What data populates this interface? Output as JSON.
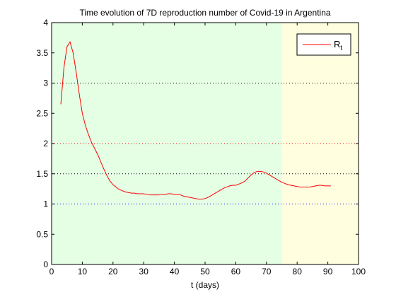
{
  "chart_data": {
    "type": "line",
    "title": "Time evolution of 7D reproduction number of Covid-19 in Argentina",
    "xlabel": "t (days)",
    "ylabel": "",
    "xlim": [
      0,
      100
    ],
    "ylim": [
      0,
      4
    ],
    "xticks": [
      0,
      10,
      20,
      30,
      40,
      50,
      60,
      70,
      80,
      90,
      100
    ],
    "yticks": [
      0,
      0.5,
      1,
      1.5,
      2,
      2.5,
      3,
      3.5,
      4
    ],
    "x_tick_labels": [
      "0",
      "10",
      "20",
      "30",
      "40",
      "50",
      "60",
      "70",
      "80",
      "90",
      "100"
    ],
    "y_tick_labels": [
      "0",
      "0.5",
      "1",
      "1.5",
      "2",
      "2.5",
      "3",
      "3.5",
      "4"
    ],
    "background_regions": [
      {
        "x_start": 0,
        "x_end": 75,
        "color": "#e5ffe5"
      },
      {
        "x_start": 75,
        "x_end": 100,
        "color": "#ffffe0"
      }
    ],
    "reference_lines": [
      {
        "y": 3,
        "color": "#000000",
        "style": "dotted"
      },
      {
        "y": 2,
        "color": "#ff0000",
        "style": "dotted"
      },
      {
        "y": 1.5,
        "color": "#000000",
        "style": "dotted"
      },
      {
        "y": 1,
        "color": "#0000ff",
        "style": "dotted"
      }
    ],
    "legend": {
      "placement": "top-right",
      "label_main": "R",
      "label_sub": "t"
    },
    "series": [
      {
        "name": "Rt",
        "color": "#ff0000",
        "x": [
          3,
          4,
          5,
          6,
          7,
          8,
          9,
          10,
          11,
          12,
          13,
          14,
          15,
          16,
          17,
          18,
          19,
          20,
          21,
          22,
          23,
          24,
          25,
          26,
          27,
          28,
          29,
          30,
          31,
          32,
          33,
          34,
          35,
          36,
          37,
          38,
          39,
          40,
          41,
          42,
          43,
          44,
          45,
          46,
          47,
          48,
          49,
          50,
          51,
          52,
          53,
          54,
          55,
          56,
          57,
          58,
          59,
          60,
          61,
          62,
          63,
          64,
          65,
          66,
          67,
          68,
          69,
          70,
          71,
          72,
          73,
          74,
          75,
          76,
          77,
          78,
          79,
          80,
          81,
          82,
          83,
          84,
          85,
          86,
          87,
          88,
          89,
          90,
          91
        ],
        "y": [
          2.65,
          3.25,
          3.6,
          3.68,
          3.5,
          3.18,
          2.82,
          2.5,
          2.3,
          2.15,
          2.02,
          1.92,
          1.82,
          1.7,
          1.58,
          1.47,
          1.38,
          1.32,
          1.28,
          1.24,
          1.22,
          1.2,
          1.19,
          1.18,
          1.18,
          1.17,
          1.17,
          1.17,
          1.16,
          1.15,
          1.15,
          1.15,
          1.15,
          1.16,
          1.16,
          1.17,
          1.17,
          1.16,
          1.16,
          1.15,
          1.13,
          1.12,
          1.11,
          1.1,
          1.09,
          1.08,
          1.08,
          1.09,
          1.11,
          1.14,
          1.17,
          1.2,
          1.23,
          1.26,
          1.28,
          1.3,
          1.31,
          1.31,
          1.33,
          1.35,
          1.38,
          1.43,
          1.48,
          1.52,
          1.54,
          1.54,
          1.53,
          1.51,
          1.48,
          1.45,
          1.42,
          1.39,
          1.36,
          1.34,
          1.32,
          1.31,
          1.3,
          1.29,
          1.28,
          1.28,
          1.28,
          1.28,
          1.29,
          1.3,
          1.31,
          1.31,
          1.3,
          1.3,
          1.3
        ]
      }
    ]
  }
}
